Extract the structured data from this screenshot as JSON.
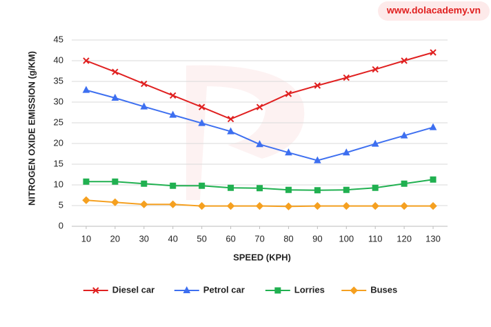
{
  "watermark": "www.dolacademy.vn",
  "chart_data": {
    "type": "line",
    "x_label": "SPEED (KPH)",
    "y_label": "NITROGEN OXIDE EMISSION (g/KM)",
    "x": [
      10,
      20,
      30,
      40,
      50,
      60,
      70,
      80,
      90,
      100,
      110,
      120,
      130
    ],
    "xlim": [
      5,
      135
    ],
    "xticks": [
      10,
      20,
      30,
      40,
      50,
      60,
      70,
      80,
      90,
      100,
      110,
      120,
      130
    ],
    "ylim": [
      0,
      45
    ],
    "yticks": [
      0,
      5,
      10,
      15,
      20,
      25,
      30,
      35,
      40,
      45
    ],
    "grid": true,
    "legend": "bottom",
    "series": [
      {
        "name": "Diesel car",
        "color": "#e02020",
        "marker": "x",
        "values": [
          40,
          37.3,
          34.4,
          31.6,
          28.8,
          25.9,
          28.8,
          32,
          34,
          35.9,
          37.9,
          40,
          42
        ]
      },
      {
        "name": "Petrol car",
        "color": "#3d6ff0",
        "marker": "triangle",
        "values": [
          32.9,
          31,
          28.9,
          26.9,
          24.9,
          22.9,
          19.8,
          17.8,
          15.9,
          17.8,
          19.9,
          21.9,
          23.9
        ]
      },
      {
        "name": "Lorries",
        "color": "#20b050",
        "marker": "square",
        "values": [
          10.8,
          10.8,
          10.3,
          9.8,
          9.8,
          9.3,
          9.2,
          8.8,
          8.7,
          8.8,
          9.3,
          10.3,
          11.3
        ]
      },
      {
        "name": "Buses",
        "color": "#f5a020",
        "marker": "diamond",
        "values": [
          6.3,
          5.8,
          5.3,
          5.3,
          4.9,
          4.9,
          4.9,
          4.8,
          4.9,
          4.9,
          4.9,
          4.9,
          4.9
        ]
      }
    ]
  }
}
